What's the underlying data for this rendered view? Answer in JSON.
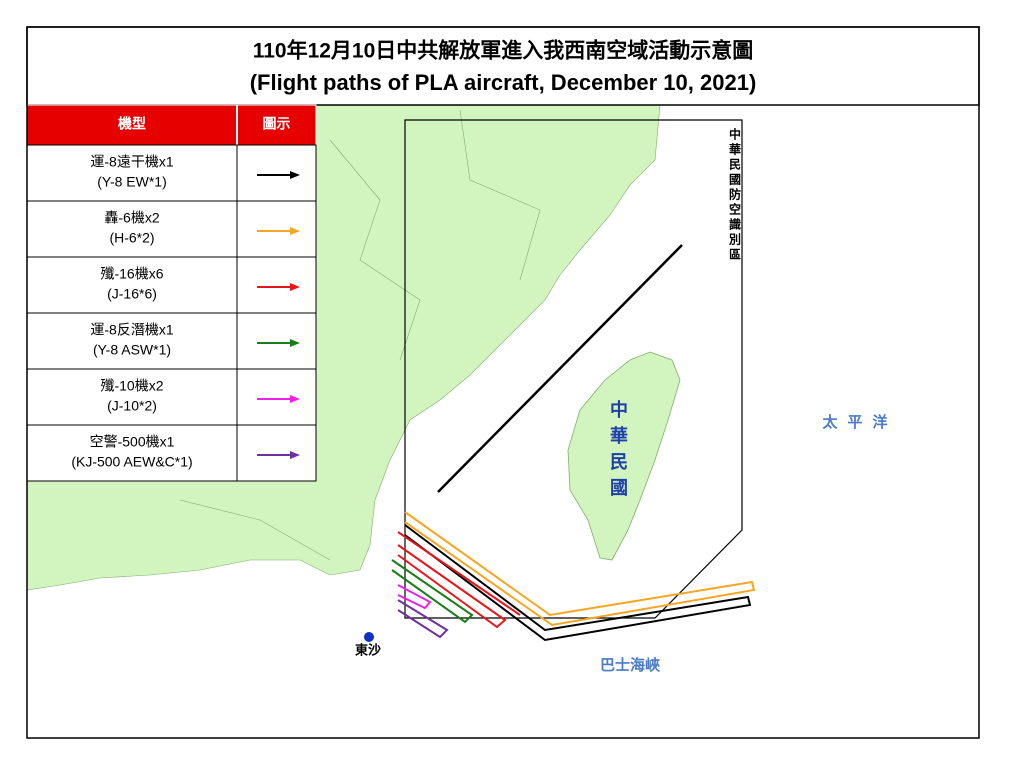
{
  "header": {
    "title": "110年12月10日中共解放軍進入我西南空域活動示意圖",
    "subtitle": "(Flight paths of PLA aircraft, December 10, 2021)"
  },
  "legend": {
    "headers": [
      "機型",
      "圖示"
    ],
    "rows": [
      {
        "name": "運-8遠干機x1",
        "name_en": "(Y-8 EW*1)",
        "color": "#000000"
      },
      {
        "name": "轟-6機x2",
        "name_en": "(H-6*2)",
        "color": "#f5a623"
      },
      {
        "name": "殲-16機x6",
        "name_en": "(J-16*6)",
        "color": "#e8141b"
      },
      {
        "name": "運-8反潛機x1",
        "name_en": "(Y-8 ASW*1)",
        "color": "#1a7d1a"
      },
      {
        "name": "殲-10機x2",
        "name_en": "(J-10*2)",
        "color": "#ee20e6"
      },
      {
        "name": "空警-500機x1",
        "name_en": "(KJ-500 AEW&C*1)",
        "color": "#7030a0"
      }
    ]
  },
  "labels": {
    "adiz": "中華民國防空識別區",
    "taiwan": "中華民國",
    "pacific": "太平洋",
    "bashi": "巴士海峽",
    "dongsha": "東沙"
  }
}
